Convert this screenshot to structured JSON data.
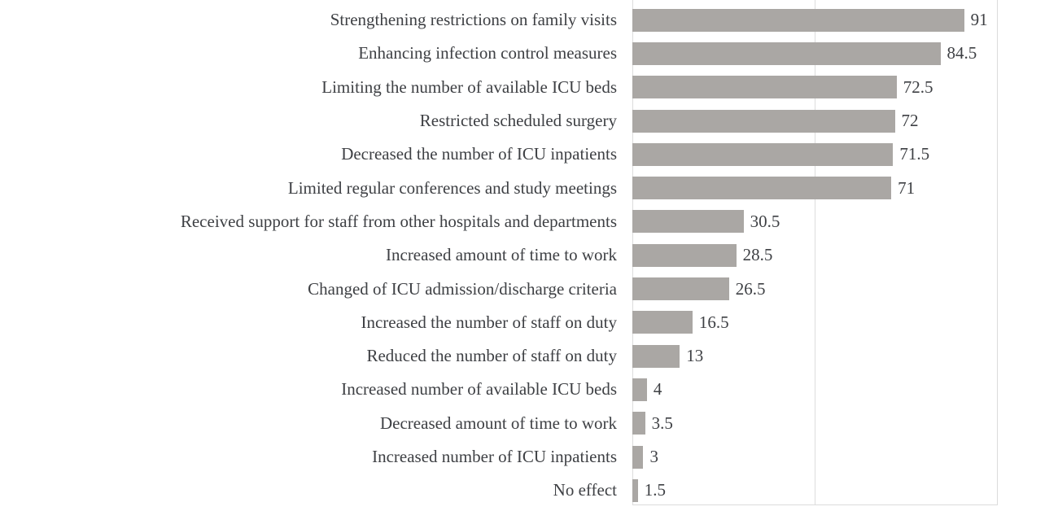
{
  "chart_data": {
    "type": "bar",
    "orientation": "horizontal",
    "title": "",
    "xlabel": "",
    "ylabel": "",
    "xlim": [
      0,
      100
    ],
    "gridlines_x": [
      0,
      50,
      100
    ],
    "grid": "vertical-only",
    "legend": "none",
    "bar_color": "#aaa7a4",
    "gridline_color": "#dcdcdc",
    "text_color": "#3e4044",
    "categories": [
      "Strengthening restrictions on family visits",
      "Enhancing infection control measures",
      "Limiting the number of available ICU beds",
      "Restricted scheduled surgery",
      "Decreased the number of ICU inpatients",
      "Limited regular conferences and study meetings",
      "Received support for staff from other hospitals and departments",
      "Increased amount of time to work",
      "Changed of ICU admission/discharge criteria",
      "Increased the number of staff on duty",
      "Reduced the number of staff on duty",
      "Increased number of available ICU beds",
      "Decreased amount of time to work",
      "Increased number of ICU inpatients",
      "No effect"
    ],
    "values": [
      91,
      84.5,
      72.5,
      72,
      71.5,
      71,
      30.5,
      28.5,
      26.5,
      16.5,
      13,
      4,
      3.5,
      3,
      1.5
    ],
    "value_labels": [
      "91",
      "84.5",
      "72.5",
      "72",
      "71.5",
      "71",
      "30.5",
      "28.5",
      "26.5",
      "16.5",
      "13",
      "4",
      "3.5",
      "3",
      "1.5"
    ]
  }
}
